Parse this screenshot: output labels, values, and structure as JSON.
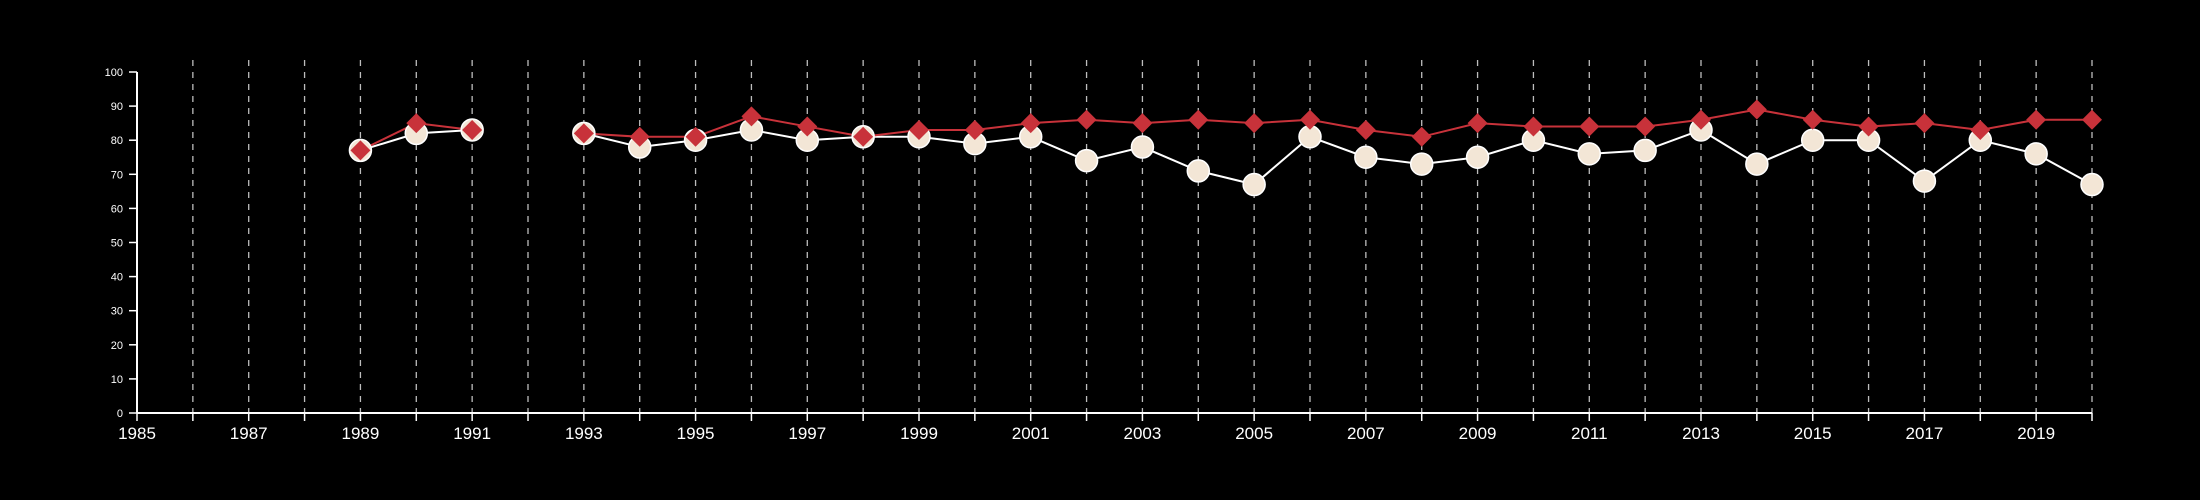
{
  "chart_data": {
    "type": "line",
    "title": "",
    "xlabel": "",
    "ylabel": "",
    "xlim": [
      1985,
      2020
    ],
    "ylim": [
      0,
      100
    ],
    "y_ticks": [
      0,
      10,
      20,
      30,
      40,
      50,
      60,
      70,
      80,
      90,
      100
    ],
    "x_tick_labels": [
      "1985",
      "1987",
      "1989",
      "1991",
      "1993",
      "1995",
      "1997",
      "1999",
      "2001",
      "2003",
      "2005",
      "2007",
      "2009",
      "2011",
      "2013",
      "2015",
      "2017",
      "2019"
    ],
    "grid": "vertical dashed lines at every year",
    "colors": {
      "background": "#000000",
      "axis": "#ffffff",
      "red_series": "#c8323a",
      "white_series": "#f3e6d6"
    },
    "series": [
      {
        "marker": "diamond",
        "color": "#c8323a",
        "x": [
          1989,
          1990,
          1991,
          null,
          1993,
          1994,
          1995,
          1996,
          1997,
          1998,
          1999,
          2000,
          2001,
          2002,
          2003,
          2004,
          2005,
          2006,
          2007,
          2008,
          2009,
          2010,
          2011,
          2012,
          2013,
          2014,
          2015,
          2016,
          2017,
          2018,
          2019,
          2020
        ],
        "values": [
          77,
          85,
          83,
          null,
          82,
          81,
          81,
          87,
          84,
          81,
          83,
          83,
          85,
          86,
          85,
          86,
          85,
          86,
          83,
          81,
          85,
          84,
          84,
          84,
          86,
          89,
          86,
          84,
          85,
          83,
          86,
          86
        ]
      },
      {
        "marker": "circle",
        "color": "#f3e6d6",
        "x": [
          1989,
          1990,
          1991,
          null,
          1993,
          1994,
          1995,
          1996,
          1997,
          1998,
          1999,
          2000,
          2001,
          2002,
          2003,
          2004,
          2005,
          2006,
          2007,
          2008,
          2009,
          2010,
          2011,
          2012,
          2013,
          2014,
          2015,
          2016,
          2017,
          2018,
          2019,
          2020
        ],
        "values": [
          77,
          82,
          83,
          null,
          82,
          78,
          80,
          83,
          80,
          81,
          81,
          79,
          81,
          74,
          78,
          71,
          67,
          81,
          75,
          73,
          75,
          80,
          76,
          77,
          83,
          73,
          80,
          80,
          68,
          80,
          76,
          67
        ]
      }
    ]
  }
}
